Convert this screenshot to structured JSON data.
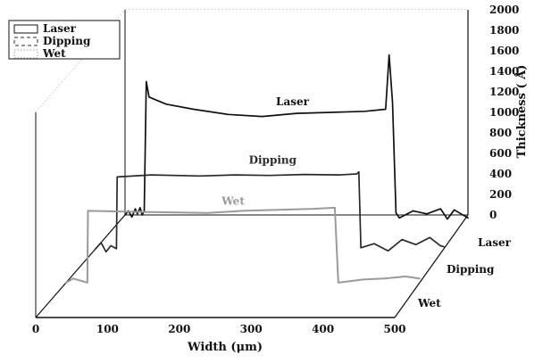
{
  "chart_data": {
    "type": "line",
    "style": "3d-stacked-profiles",
    "xlabel": "Width (μm)",
    "zlabel": "Thickness ( Å)",
    "x_ticks": [
      0,
      100,
      200,
      300,
      400,
      500
    ],
    "z_ticks": [
      0,
      200,
      400,
      600,
      800,
      1000,
      1200,
      1400,
      1600,
      1800,
      2000
    ],
    "xlim": [
      0,
      500
    ],
    "zlim": [
      0,
      2000
    ],
    "depth_labels": [
      "Laser",
      "Dipping",
      "Wet"
    ],
    "legend": {
      "placement": "top-left",
      "entries": [
        "Laser",
        "Dipping",
        "Wet"
      ]
    },
    "grid": true,
    "colors": {
      "laser": "#111111",
      "dipping": "#2a2a2a",
      "wet": "#9a9a9a",
      "grid": "#8c8c8c"
    },
    "series": [
      {
        "name": "Laser",
        "points": [
          [
            0,
            0
          ],
          [
            5,
            40
          ],
          [
            10,
            -20
          ],
          [
            15,
            60
          ],
          [
            18,
            10
          ],
          [
            22,
            70
          ],
          [
            25,
            0
          ],
          [
            28,
            40
          ],
          [
            31,
            1300
          ],
          [
            35,
            1150
          ],
          [
            60,
            1080
          ],
          [
            100,
            1030
          ],
          [
            150,
            980
          ],
          [
            200,
            960
          ],
          [
            250,
            990
          ],
          [
            300,
            1000
          ],
          [
            350,
            1010
          ],
          [
            380,
            1030
          ],
          [
            385,
            1560
          ],
          [
            390,
            1100
          ],
          [
            395,
            20
          ],
          [
            400,
            -30
          ],
          [
            420,
            40
          ],
          [
            440,
            10
          ],
          [
            460,
            60
          ],
          [
            470,
            -40
          ],
          [
            480,
            50
          ],
          [
            490,
            10
          ],
          [
            500,
            -30
          ]
        ]
      },
      {
        "name": "Dipping",
        "points": [
          [
            0,
            0
          ],
          [
            8,
            60
          ],
          [
            15,
            -30
          ],
          [
            22,
            30
          ],
          [
            30,
            0
          ],
          [
            31,
            700
          ],
          [
            80,
            720
          ],
          [
            150,
            710
          ],
          [
            200,
            720
          ],
          [
            250,
            715
          ],
          [
            300,
            725
          ],
          [
            350,
            720
          ],
          [
            375,
            730
          ],
          [
            378,
            750
          ],
          [
            381,
            10
          ],
          [
            400,
            50
          ],
          [
            420,
            -20
          ],
          [
            440,
            90
          ],
          [
            460,
            40
          ],
          [
            480,
            110
          ],
          [
            495,
            30
          ],
          [
            500,
            20
          ]
        ]
      },
      {
        "name": "Wet",
        "points": [
          [
            0,
            0
          ],
          [
            10,
            40
          ],
          [
            20,
            20
          ],
          [
            30,
            0
          ],
          [
            31,
            700
          ],
          [
            100,
            690
          ],
          [
            200,
            680
          ],
          [
            250,
            700
          ],
          [
            300,
            710
          ],
          [
            350,
            720
          ],
          [
            380,
            730
          ],
          [
            385,
            0
          ],
          [
            420,
            30
          ],
          [
            450,
            40
          ],
          [
            480,
            60
          ],
          [
            500,
            40
          ]
        ]
      }
    ]
  }
}
